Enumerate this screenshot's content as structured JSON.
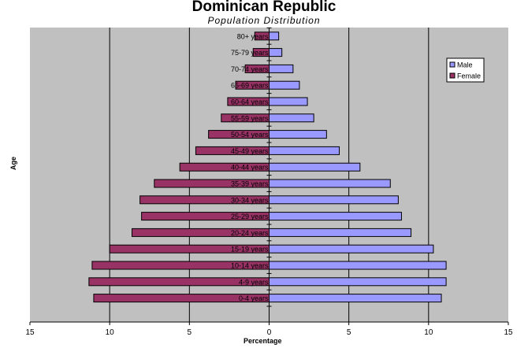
{
  "chart_data": {
    "type": "bar",
    "orientation": "horizontal",
    "title": "Dominican Republic",
    "subtitle": "Population Distribution",
    "xlabel": "Percentage",
    "ylabel": "Age",
    "xlim": [
      -15,
      15
    ],
    "x_ticks": [
      -15,
      -10,
      -5,
      0,
      5,
      10,
      15
    ],
    "x_tick_labels": [
      "15",
      "10",
      "5",
      "0",
      "5",
      "10",
      "15"
    ],
    "grid": "vertical",
    "legend_position": "right",
    "categories": [
      "0-4 years",
      "4-9 years",
      "10-14 years",
      "15-19 years",
      "20-24 years",
      "25-29 years",
      "30-34 years",
      "35-39 years",
      "40-44 years",
      "45-49 years",
      "50-54 years",
      "55-59 years",
      "60-64 years",
      "65-69 years",
      "70-74 years",
      "75-79 years",
      "80+ years"
    ],
    "series": [
      {
        "name": "Male",
        "color": "#9999ff",
        "values": [
          10.8,
          11.1,
          11.1,
          10.3,
          8.9,
          8.3,
          8.1,
          7.6,
          5.7,
          4.4,
          3.6,
          2.8,
          2.4,
          1.9,
          1.5,
          0.8,
          0.6
        ]
      },
      {
        "name": "Female",
        "color": "#993366",
        "values": [
          -11.0,
          -11.3,
          -11.1,
          -10.0,
          -8.6,
          -8.0,
          -8.1,
          -7.2,
          -5.6,
          -4.6,
          -3.8,
          -3.0,
          -2.6,
          -2.1,
          -1.5,
          -1.0,
          -0.9
        ]
      }
    ],
    "colors": {
      "plot_background": "#c0c0c0",
      "grid": "#000000"
    }
  }
}
